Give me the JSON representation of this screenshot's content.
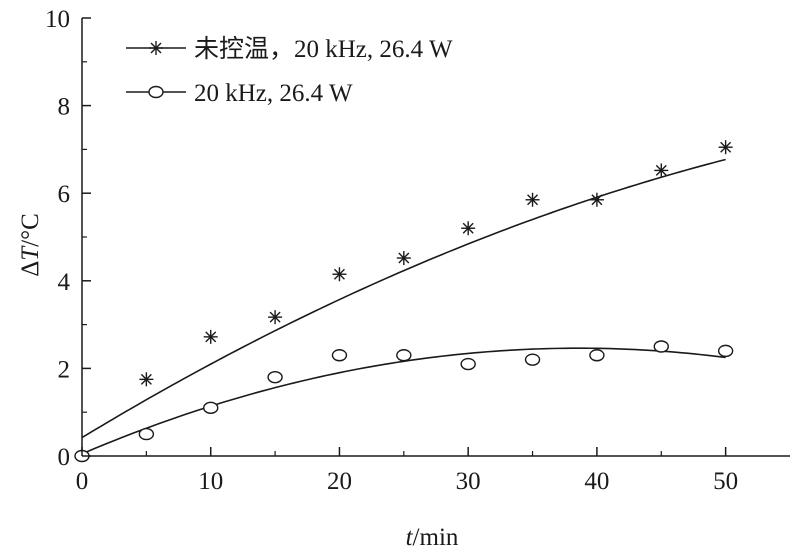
{
  "chart_data": {
    "type": "scatter",
    "xlabel_italic": "t",
    "xlabel_unit": "/min",
    "ylabel_prefix": "Δ",
    "ylabel_italic": "T",
    "ylabel_unit": "/°C",
    "xlim": [
      0,
      55
    ],
    "ylim": [
      0,
      10
    ],
    "xticks": [
      0,
      10,
      20,
      30,
      40,
      50
    ],
    "yticks": [
      0,
      2,
      4,
      6,
      8,
      10
    ],
    "grid": false,
    "legend_position": "top-left",
    "series": [
      {
        "name": "未控温，20 kHz, 26.4 W",
        "marker": "asterisk",
        "x": [
          5,
          10,
          15,
          20,
          25,
          30,
          35,
          40,
          45,
          50
        ],
        "y": [
          1.75,
          2.72,
          3.17,
          4.15,
          4.52,
          5.2,
          5.85,
          5.85,
          6.52,
          7.05
        ],
        "fit": [
          0.42,
          0.178,
          -0.00102
        ]
      },
      {
        "name": "20 kHz, 26.4 W",
        "marker": "circle",
        "x": [
          0,
          5,
          10,
          15,
          20,
          25,
          30,
          35,
          40,
          45,
          50
        ],
        "y": [
          0.0,
          0.5,
          1.1,
          1.8,
          2.3,
          2.3,
          2.1,
          2.2,
          2.3,
          2.5,
          2.4
        ],
        "fit": [
          0.05,
          0.125,
          -0.00162
        ]
      }
    ]
  },
  "style": {
    "axis_color": "#1a1a1a",
    "line_color": "#1a1a1a"
  }
}
